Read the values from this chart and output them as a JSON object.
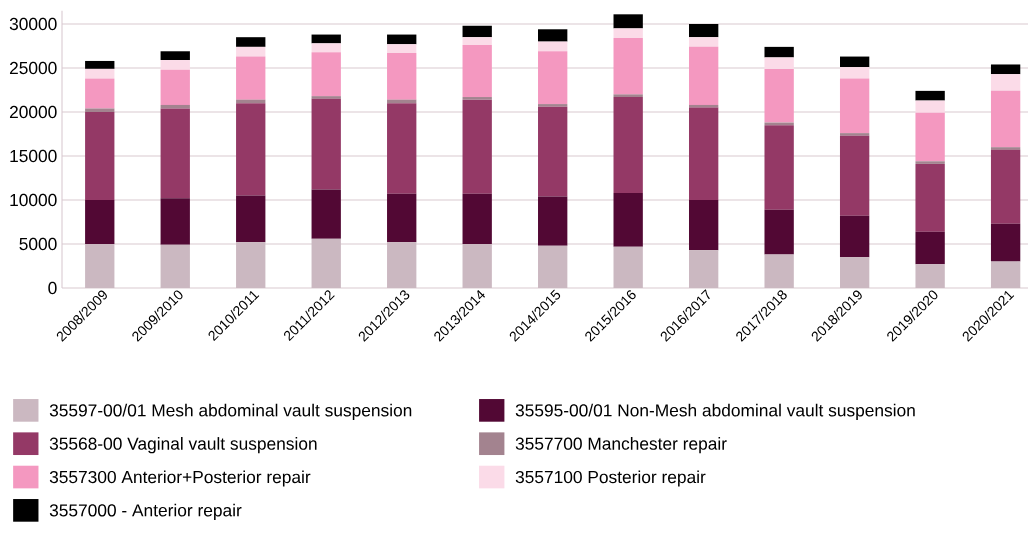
{
  "chart_data": {
    "type": "bar",
    "stacked": true,
    "grid": "y",
    "legend": "bottom",
    "categories": [
      "2008/2009",
      "2009/2010",
      "2010/2011",
      "2011/2012",
      "2012/2013",
      "2013/2014",
      "2014/2015",
      "2015/2016",
      "2016/2017",
      "2017/2018",
      "2018/2019",
      "2019/2020",
      "2020/2021"
    ],
    "ylim": [
      0,
      31500
    ],
    "yticks": [
      0,
      5000,
      10000,
      15000,
      20000,
      25000,
      30000
    ],
    "series": [
      {
        "name": "35597-00/01 Mesh abdominal vault suspension",
        "color": "#cbb8c1",
        "values": [
          5000,
          4900,
          5200,
          5600,
          5200,
          5000,
          4800,
          4700,
          4300,
          3800,
          3500,
          2700,
          3000
        ]
      },
      {
        "name": "35595-00/01 Non-Mesh abdominal vault suspension",
        "color": "#520834",
        "values": [
          5000,
          5300,
          5300,
          5600,
          5500,
          5700,
          5600,
          6100,
          5700,
          5100,
          4700,
          3700,
          4300
        ]
      },
      {
        "name": "35568-00 Vaginal vault suspension",
        "color": "#943966",
        "values": [
          10000,
          10200,
          10500,
          10300,
          10300,
          10700,
          10200,
          10900,
          10500,
          9600,
          9100,
          7700,
          8400
        ]
      },
      {
        "name": "3557700 Manchester repair",
        "color": "#a3838f",
        "values": [
          400,
          400,
          400,
          300,
          400,
          300,
          300,
          300,
          300,
          300,
          300,
          300,
          300
        ]
      },
      {
        "name": "3557300 Anterior+Posterior repair",
        "color": "#f498c0",
        "values": [
          3400,
          4000,
          4900,
          5000,
          5300,
          5900,
          6000,
          6400,
          6600,
          6100,
          6200,
          5500,
          6400
        ]
      },
      {
        "name": "3557100 Posterior repair",
        "color": "#fbdbe8",
        "values": [
          1100,
          1100,
          1100,
          1000,
          1000,
          900,
          1100,
          1100,
          1100,
          1300,
          1300,
          1400,
          1900
        ]
      },
      {
        "name": "3557000 - Anterior repair",
        "color": "#000000",
        "values": [
          900,
          1000,
          1100,
          1000,
          1100,
          1300,
          1400,
          1600,
          1500,
          1200,
          1200,
          1100,
          1100
        ]
      }
    ]
  }
}
